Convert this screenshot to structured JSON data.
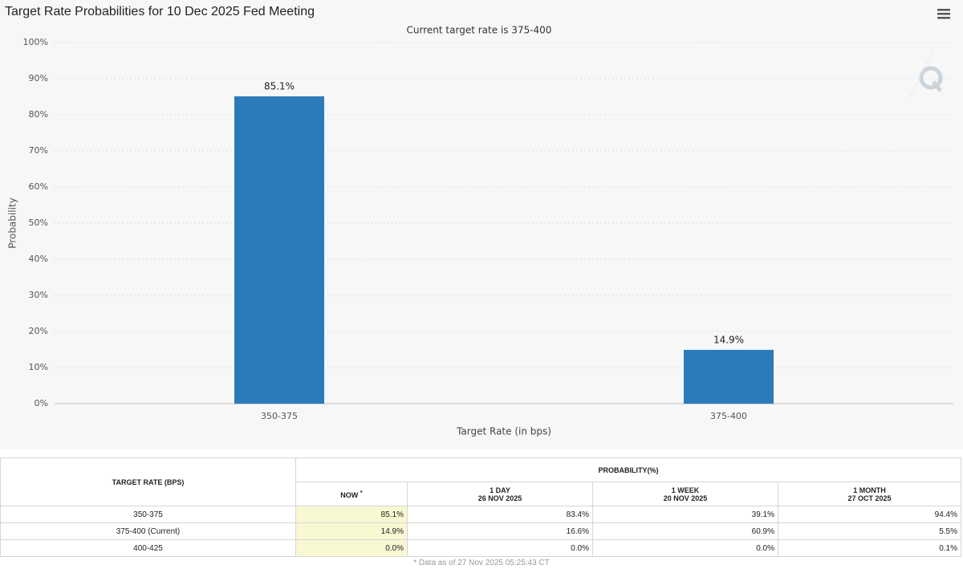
{
  "chart_data": {
    "type": "bar",
    "title": "Target Rate Probabilities for 10 Dec 2025 Fed Meeting",
    "subtitle": "Current target rate is 375-400",
    "x_label": "Target Rate (in bps)",
    "y_label": "Probability",
    "categories": [
      "350-375",
      "375-400"
    ],
    "values": [
      85.1,
      14.9
    ],
    "value_labels": [
      "85.1%",
      "14.9%"
    ],
    "color": "#2b7bb9",
    "ylim": [
      0,
      100
    ],
    "yticks": [
      {
        "value": 0,
        "label": "0%"
      },
      {
        "value": 10,
        "label": "10%"
      },
      {
        "value": 20,
        "label": "20%"
      },
      {
        "value": 30,
        "label": "30%"
      },
      {
        "value": 40,
        "label": "40%"
      },
      {
        "value": 50,
        "label": "50%"
      },
      {
        "value": 60,
        "label": "60%"
      },
      {
        "value": 70,
        "label": "70%"
      },
      {
        "value": 80,
        "label": "80%"
      },
      {
        "value": 90,
        "label": "90%"
      },
      {
        "value": 100,
        "label": "100%"
      }
    ],
    "grid": true
  },
  "table": {
    "header": {
      "target": "TARGET RATE (BPS)",
      "probability": "PROBABILITY(%)",
      "columns": [
        {
          "title": "NOW",
          "note": "*"
        },
        {
          "title": "1 DAY",
          "date": "26 NOV 2025"
        },
        {
          "title": "1 WEEK",
          "date": "20 NOV 2025"
        },
        {
          "title": "1 MONTH",
          "date": "27 OCT 2025"
        }
      ]
    },
    "rows": [
      [
        "350-375",
        "85.1%",
        "83.4%",
        "39.1%",
        "94.4%"
      ],
      [
        "375-400 (Current)",
        "14.9%",
        "16.6%",
        "60.9%",
        "5.5%"
      ],
      [
        "400-425",
        "0.0%",
        "0.0%",
        "0.0%",
        "0.1%"
      ]
    ]
  },
  "footnote": "* Data as of 27 Nov 2025 05:25:43 CT"
}
